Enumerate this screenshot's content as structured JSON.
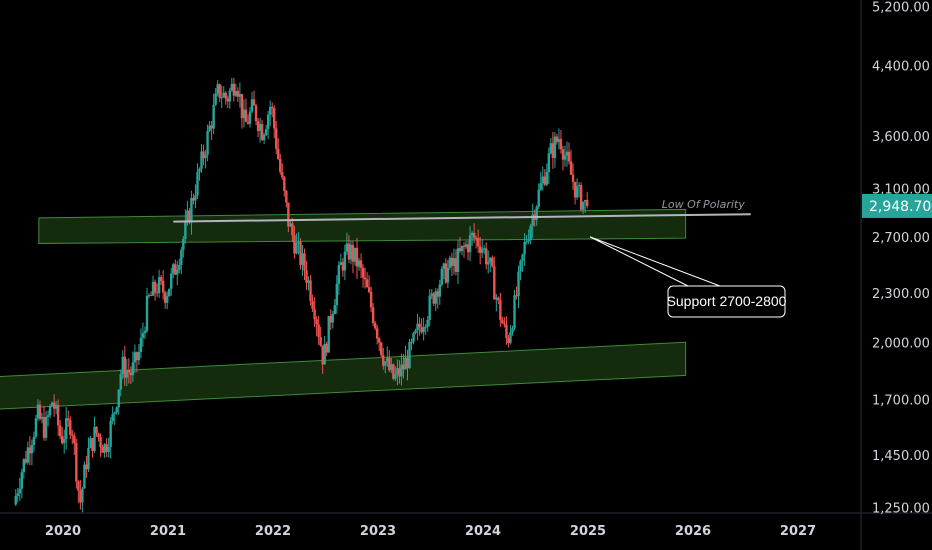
{
  "chart_data": {
    "type": "candlestick",
    "y_scale": "log",
    "y_range": [
      1230,
      5300
    ],
    "x_range": [
      2019.4,
      2027.6
    ],
    "y_ticks": [
      {
        "value": 5200,
        "label": "5,200.00"
      },
      {
        "value": 4400,
        "label": "4,400.00"
      },
      {
        "value": 3600,
        "label": "3,600.00"
      },
      {
        "value": 3100,
        "label": "3,100.00"
      },
      {
        "value": 2700,
        "label": "2,700.00"
      },
      {
        "value": 2300,
        "label": "2,300.00"
      },
      {
        "value": 2000,
        "label": "2,000.00"
      },
      {
        "value": 1700,
        "label": "1,700.00"
      },
      {
        "value": 1450,
        "label": "1,450.00"
      },
      {
        "value": 1250,
        "label": "1,250.00"
      }
    ],
    "x_ticks": [
      {
        "value": 2020,
        "label": "2020"
      },
      {
        "value": 2021,
        "label": "2021"
      },
      {
        "value": 2022,
        "label": "2022"
      },
      {
        "value": 2023,
        "label": "2023"
      },
      {
        "value": 2024,
        "label": "2024"
      },
      {
        "value": 2025,
        "label": "2025"
      },
      {
        "value": 2026,
        "label": "2026"
      },
      {
        "value": 2027,
        "label": "2027"
      }
    ],
    "last_price": {
      "value": 2948.7,
      "label": "2,948.70"
    },
    "price_path": [
      [
        2019.55,
        1260
      ],
      [
        2019.62,
        1380
      ],
      [
        2019.7,
        1500
      ],
      [
        2019.78,
        1620
      ],
      [
        2019.85,
        1560
      ],
      [
        2019.92,
        1700
      ],
      [
        2020.0,
        1520
      ],
      [
        2020.1,
        1600
      ],
      [
        2020.18,
        1260
      ],
      [
        2020.25,
        1450
      ],
      [
        2020.33,
        1550
      ],
      [
        2020.42,
        1480
      ],
      [
        2020.5,
        1620
      ],
      [
        2020.58,
        1870
      ],
      [
        2020.67,
        1830
      ],
      [
        2020.75,
        1950
      ],
      [
        2020.83,
        2250
      ],
      [
        2020.92,
        2350
      ],
      [
        2021.0,
        2300
      ],
      [
        2021.08,
        2450
      ],
      [
        2021.17,
        2700
      ],
      [
        2021.25,
        3000
      ],
      [
        2021.33,
        3300
      ],
      [
        2021.42,
        3700
      ],
      [
        2021.5,
        4100
      ],
      [
        2021.58,
        4000
      ],
      [
        2021.67,
        4250
      ],
      [
        2021.75,
        3700
      ],
      [
        2021.83,
        3900
      ],
      [
        2021.92,
        3650
      ],
      [
        2022.0,
        3950
      ],
      [
        2022.08,
        3300
      ],
      [
        2022.17,
        2800
      ],
      [
        2022.25,
        2600
      ],
      [
        2022.33,
        2450
      ],
      [
        2022.42,
        2200
      ],
      [
        2022.5,
        1900
      ],
      [
        2022.58,
        2200
      ],
      [
        2022.67,
        2500
      ],
      [
        2022.75,
        2600
      ],
      [
        2022.83,
        2500
      ],
      [
        2022.92,
        2300
      ],
      [
        2023.0,
        2100
      ],
      [
        2023.08,
        1900
      ],
      [
        2023.17,
        1800
      ],
      [
        2023.25,
        1850
      ],
      [
        2023.33,
        1950
      ],
      [
        2023.42,
        2100
      ],
      [
        2023.5,
        2200
      ],
      [
        2023.58,
        2350
      ],
      [
        2023.67,
        2450
      ],
      [
        2023.75,
        2500
      ],
      [
        2023.83,
        2600
      ],
      [
        2023.92,
        2700
      ],
      [
        2024.0,
        2650
      ],
      [
        2024.08,
        2500
      ],
      [
        2024.17,
        2200
      ],
      [
        2024.25,
        2000
      ],
      [
        2024.33,
        2250
      ],
      [
        2024.42,
        2650
      ],
      [
        2024.5,
        2900
      ],
      [
        2024.58,
        3150
      ],
      [
        2024.67,
        3450
      ],
      [
        2024.75,
        3600
      ],
      [
        2024.83,
        3300
      ],
      [
        2024.92,
        3050
      ],
      [
        2025.0,
        2948.7
      ]
    ],
    "zones": [
      {
        "x1": 2019.77,
        "y1a": 2650,
        "y1b": 2850,
        "x2": 2025.93,
        "y2a": 2690,
        "y2b": 2920
      },
      {
        "x1": 2019.25,
        "y1a": 1650,
        "y1b": 1810,
        "x2": 2025.93,
        "y2a": 1820,
        "y2b": 2000
      }
    ],
    "polarity_line": {
      "x1": 2021.05,
      "y1": 2820,
      "x2": 2026.55,
      "y2": 2880,
      "label": "Low Of Polarity"
    },
    "callout": {
      "text": "Support 2700-2800",
      "target": [
        2025.02,
        2700
      ]
    },
    "colors": {
      "up": "#26a69a",
      "down": "#ef5350",
      "zone_fill": "#1b3a12",
      "zone_stroke": "#3f8a3a",
      "price_tag": "#26a69a",
      "polarity_line": "#b2b5be"
    }
  }
}
